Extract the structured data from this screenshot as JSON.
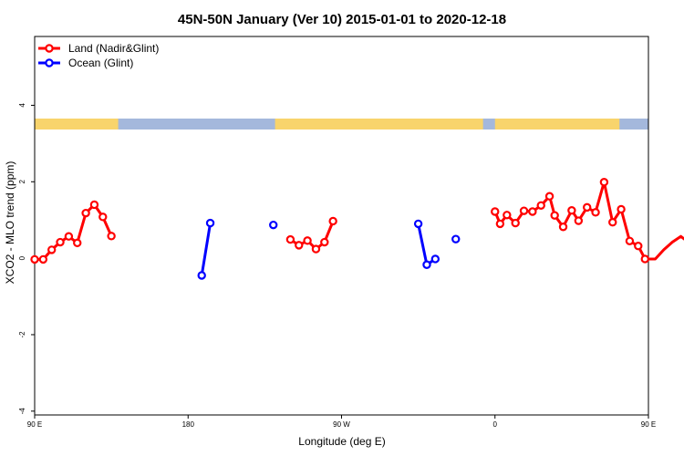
{
  "chart_data": {
    "type": "line",
    "title": "45N-50N January (Ver 10)   2015-01-01 to 2020-12-18",
    "xlabel": "Longitude (deg E)",
    "ylabel": "XCO2 - MLO trend (ppm)",
    "xlim": [
      90,
      450
    ],
    "ylim": [
      -4.1,
      5.8
    ],
    "x_ticks": [
      {
        "value": 90,
        "label": "90 E"
      },
      {
        "value": 180,
        "label": "180"
      },
      {
        "value": 270,
        "label": "90 W"
      },
      {
        "value": 360,
        "label": "0"
      },
      {
        "value": 450,
        "label": "90 E"
      },
      {
        "value": 540,
        "label": "180"
      }
    ],
    "y_ticks": [
      {
        "value": -4,
        "label": "-4"
      },
      {
        "value": -2,
        "label": "-2"
      },
      {
        "value": 0,
        "label": "0"
      },
      {
        "value": 2,
        "label": "2"
      },
      {
        "value": 4,
        "label": "4"
      }
    ],
    "legend_position": "top-left",
    "series": [
      {
        "name": "Land (Nadir&Glint)",
        "color": "#ff0000",
        "segments": [
          [
            [
              90,
              -0.03
            ],
            [
              95,
              -0.03
            ],
            [
              100,
              0.22
            ],
            [
              105,
              0.42
            ],
            [
              110,
              0.57
            ],
            [
              115,
              0.4
            ],
            [
              120,
              1.18
            ],
            [
              125,
              1.4
            ],
            [
              130,
              1.08
            ],
            [
              135,
              0.58
            ]
          ],
          [
            [
              240,
              0.49
            ],
            [
              245,
              0.34
            ],
            [
              250,
              0.46
            ],
            [
              255,
              0.24
            ],
            [
              260,
              0.42
            ],
            [
              265,
              0.97
            ]
          ],
          [
            [
              360,
              1.22
            ],
            [
              363,
              0.9
            ],
            [
              367,
              1.13
            ],
            [
              372,
              0.92
            ],
            [
              377,
              1.24
            ],
            [
              382,
              1.22
            ],
            [
              387,
              1.38
            ],
            [
              392,
              1.62
            ],
            [
              395,
              1.12
            ],
            [
              400,
              0.82
            ],
            [
              405,
              1.25
            ],
            [
              409,
              0.98
            ],
            [
              414,
              1.33
            ],
            [
              419,
              1.2
            ],
            [
              424,
              1.99
            ],
            [
              429,
              0.94
            ],
            [
              434,
              1.28
            ],
            [
              439,
              0.45
            ],
            [
              444,
              0.32
            ],
            [
              448,
              -0.02
            ],
            [
              454,
              -0.02
            ],
            [
              459,
              0.22
            ],
            [
              464,
              0.42
            ],
            [
              469,
              0.57
            ],
            [
              474,
              0.4
            ],
            [
              479,
              1.18
            ],
            [
              484,
              1.4
            ],
            [
              489,
              1.08
            ],
            [
              494,
              0.58
            ]
          ]
        ]
      },
      {
        "name": "Ocean (Glint)",
        "color": "#0000ff",
        "segments": [
          [
            [
              188,
              -0.45
            ],
            [
              193,
              0.92
            ]
          ],
          [
            [
              230,
              0.87
            ]
          ],
          [
            [
              315,
              0.9
            ],
            [
              320,
              -0.17
            ],
            [
              325,
              -0.02
            ]
          ],
          [
            [
              337,
              0.5
            ]
          ]
        ]
      }
    ],
    "map_band": {
      "ocean_color": "#a4b8dc",
      "land_color": "#f8d46c",
      "land_ranges": [
        [
          90,
          139
        ],
        [
          231,
          353
        ],
        [
          360,
          433
        ]
      ]
    }
  }
}
